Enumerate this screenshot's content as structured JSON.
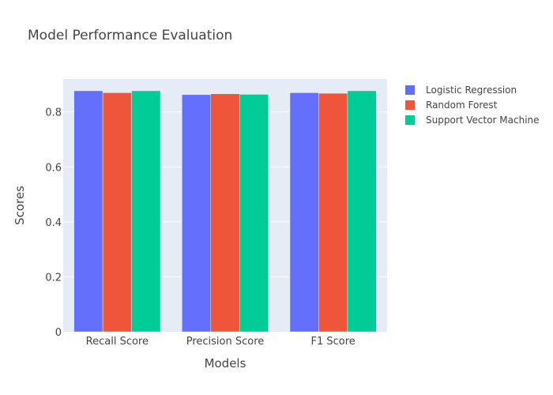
{
  "chart_data": {
    "type": "bar",
    "title": "Model Performance Evaluation",
    "xlabel": "Models",
    "ylabel": "Scores",
    "categories": [
      "Recall Score",
      "Precision Score",
      "F1 Score"
    ],
    "series": [
      {
        "name": "Logistic Regression",
        "color": "#636efa",
        "values": [
          0.877,
          0.863,
          0.87
        ]
      },
      {
        "name": "Random Forest",
        "color": "#ef553b",
        "values": [
          0.87,
          0.866,
          0.868
        ]
      },
      {
        "name": "Support Vector Machine",
        "color": "#00cc96",
        "values": [
          0.877,
          0.864,
          0.877
        ]
      }
    ],
    "ylim": [
      0,
      0.92
    ],
    "yticks": [
      0,
      0.2,
      0.4,
      0.6,
      0.8
    ],
    "ytick_labels": [
      "0",
      "0.2",
      "0.4",
      "0.6",
      "0.8"
    ],
    "grid": true,
    "legend_position": "top-right",
    "plot_background": "#e5ecf6"
  }
}
